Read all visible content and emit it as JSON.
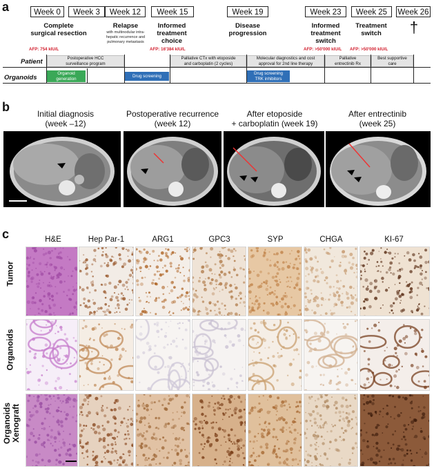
{
  "panels": {
    "a": "a",
    "b": "b",
    "c": "c"
  },
  "timeline": {
    "weeks": [
      "Week 0",
      "Week 3",
      "Week 12",
      "Week 15",
      "Week 19",
      "Week 23",
      "Week 25",
      "Week 26"
    ],
    "events": [
      {
        "title": "Complete\nsurgical resection",
        "sub": ""
      },
      {
        "title": "Relapse",
        "sub": "with multinodular intra-\nhepatic recurrence and\npulmonary metastasis"
      },
      {
        "title": "Informed\ntreatment\nchoice",
        "sub": ""
      },
      {
        "title": "Disease\nprogression",
        "sub": ""
      },
      {
        "title": "Informed\ntreatment\nswitch",
        "sub": ""
      },
      {
        "title": "Treatment\nswitch",
        "sub": ""
      },
      {
        "title": "†",
        "sub": ""
      }
    ],
    "afp": [
      "AFP: 754 kIU/L",
      "AFP: 16'384 kIU/L",
      "AFP: >50'000 kIU/L",
      "AFP: >50'000 kIU/L"
    ],
    "patient_label": "Patient",
    "organoids_label": "Organoids",
    "patient_bars": [
      "Postoperative HCC\nsurveillance program",
      "Palliative CTx with etoposide\nand carboplatin (2 cycles)",
      "Molecular diagnostics and cost\napproval for 2nd line therapy",
      "Palliative\nentrectinib Rx",
      "Best supportive\ncare"
    ],
    "organoid_bars": [
      {
        "label": "Organoid\ngeneration",
        "color": "#3aa857"
      },
      {
        "label": "Drug screening",
        "color": "#2f6fb7"
      },
      {
        "label": "Drug screening\nTRK inhibitors",
        "color": "#2f6fb7"
      }
    ]
  },
  "ct": {
    "titles": [
      "Initial diagnosis\n(week –12)",
      "Postoperative recurrence\n(week 12)",
      "After etoposide\n+ carboplatin (week 19)",
      "After entrectinib\n(week 25)"
    ]
  },
  "ihc": {
    "stains": [
      "H&E",
      "Hep Par-1",
      "ARG1",
      "GPC3",
      "SYP",
      "CHGA",
      "KI-67"
    ],
    "rows": [
      "Tumor",
      "Organoids",
      "Organoids\nXenograft"
    ]
  }
}
